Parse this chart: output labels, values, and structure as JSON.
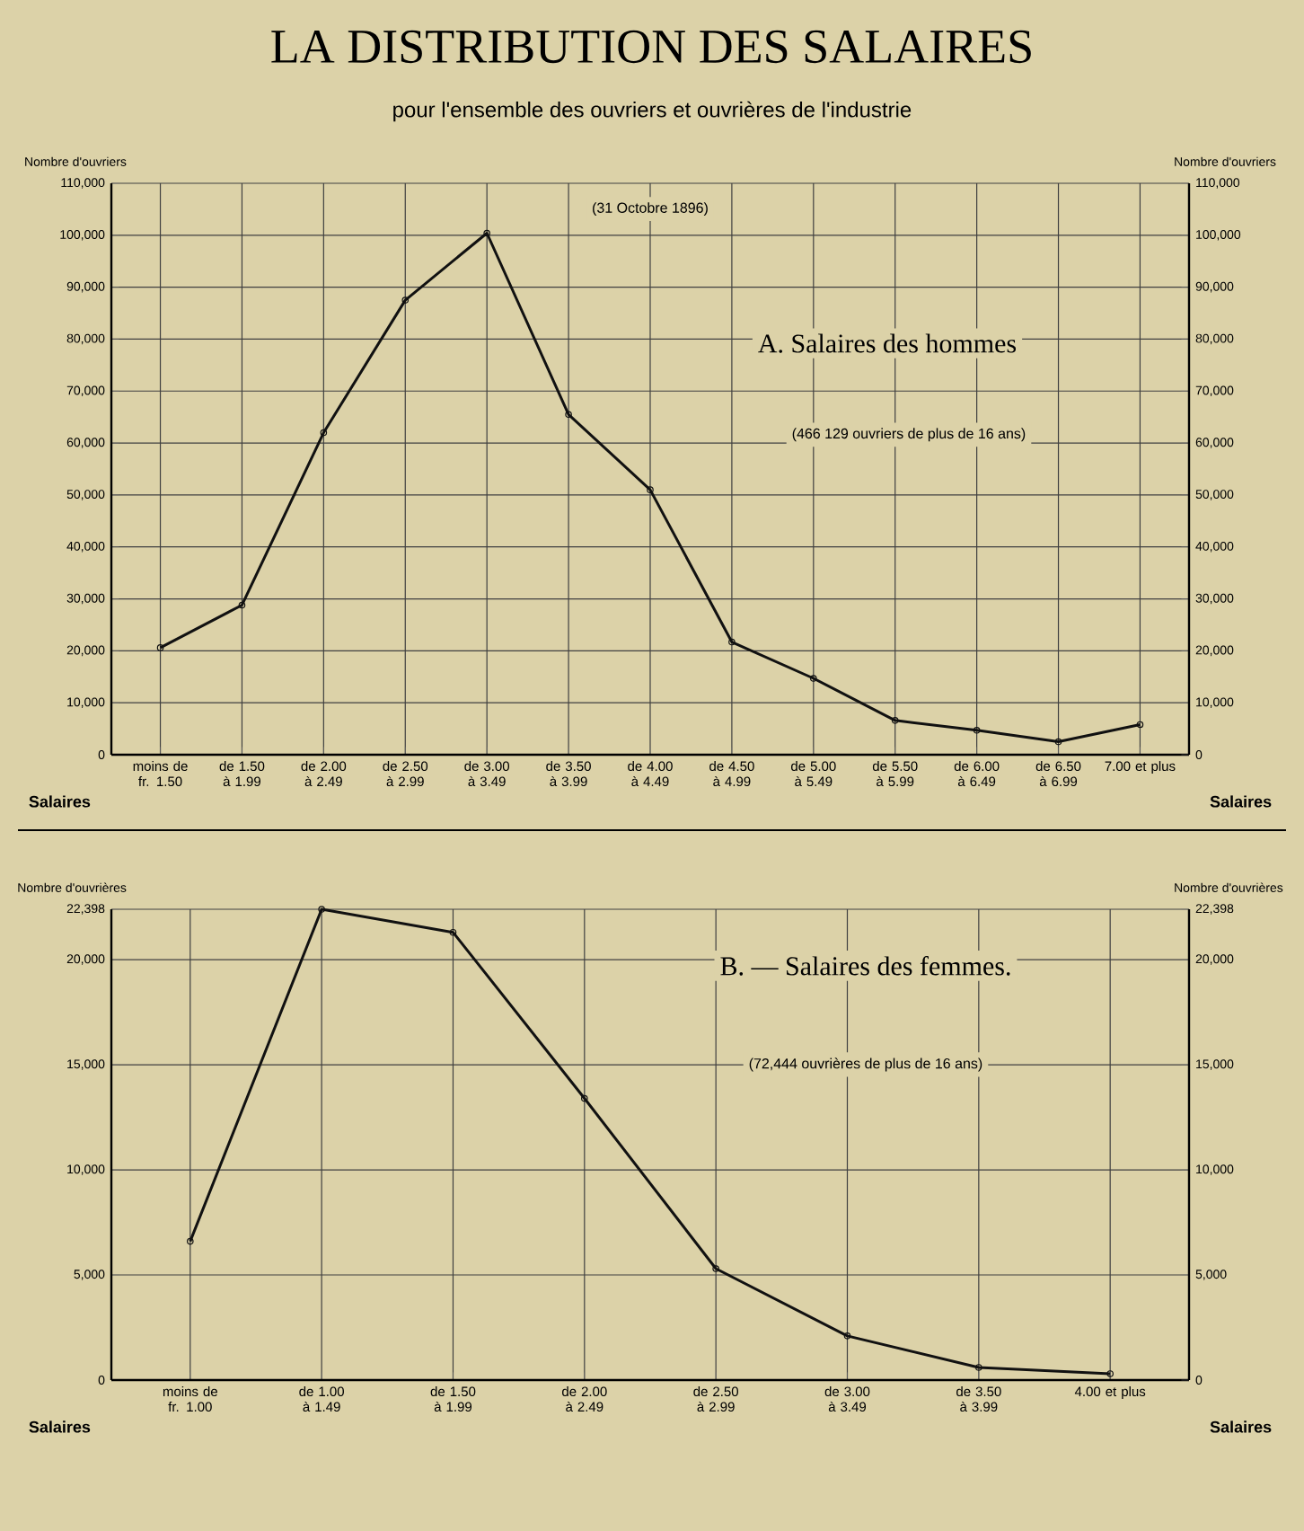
{
  "chart_data": [
    {
      "type": "line",
      "title": "LA DISTRIBUTION DES SALAIRES",
      "subtitle": "pour l'ensemble des ouvriers et ouvrières de l'industrie",
      "annotations": [
        "(31 Octobre 1896)",
        "A.    Salaires des hommes",
        "(466 129 ouvriers de plus de 16 ans)"
      ],
      "xlabel": "Salaires",
      "ylabel": "Nombre d'ouvriers",
      "y2label": "Nombre d'ouvriers",
      "categories": [
        "moins de fr. 1.50",
        "de 1.50 à 1.99",
        "de 2.00 à 2.49",
        "de 2.50 à 2.99",
        "de 3.00 à 3.49",
        "de 3.50 à 3.99",
        "de 4.00 à 4.49",
        "de 4.50 à 4.99",
        "de 5.00 à 5.49",
        "de 5.50 à 5.99",
        "de 6.00 à 6.49",
        "de 6.50 à 6.99",
        "7.00 et plus"
      ],
      "values": [
        20600,
        28800,
        62000,
        87500,
        100400,
        65500,
        51000,
        21700,
        14700,
        6600,
        4700,
        2500,
        5800
      ],
      "color": "#111111",
      "ylim": [
        0,
        110000
      ],
      "yticks": [
        0,
        {
          "value": 10000,
          "label": "10,000"
        },
        {
          "value": 20000,
          "label": "20,000"
        },
        {
          "value": 30000,
          "label": "30,000"
        },
        {
          "value": 40000,
          "label": "40,000"
        },
        {
          "value": 50000,
          "label": "50,000"
        },
        {
          "value": 60000,
          "label": "60,000"
        },
        {
          "value": 70000,
          "label": "70,000"
        },
        {
          "value": 80000,
          "label": "80,000"
        },
        {
          "value": 90000,
          "label": "90,000"
        },
        {
          "value": 100000,
          "label": "100,000"
        },
        {
          "value": 110000,
          "label": "110,000"
        }
      ],
      "y2lim": [
        0,
        110000
      ],
      "y2ticks": [
        0,
        {
          "value": 10000,
          "label": "10,000"
        },
        {
          "value": 20000,
          "label": "20,000"
        },
        {
          "value": 30000,
          "label": "30,000"
        },
        {
          "value": 40000,
          "label": "40,000"
        },
        {
          "value": 50000,
          "label": "50,000"
        },
        {
          "value": 60000,
          "label": "60,000"
        },
        {
          "value": 70000,
          "label": "70,000"
        },
        {
          "value": 80000,
          "label": "80,000"
        },
        {
          "value": 90000,
          "label": "90,000"
        },
        {
          "value": 100000,
          "label": "100,000"
        },
        {
          "value": 110000,
          "label": "110,000"
        }
      ],
      "grid": true,
      "marker": "circle",
      "line_style": "solid"
    },
    {
      "type": "line",
      "annotations": [
        "B.  —  Salaires des femmes.",
        "(72,444 ouvrières de plus de 16 ans)"
      ],
      "xlabel": "Salaires",
      "ylabel": "Nombre d'ouvrières",
      "y2label": "Nombre d'ouvrières",
      "categories": [
        "moins de fr. 1.00",
        "de 1.00 à 1.49",
        "de 1.50 à 1.99",
        "de 2.00 à 2.49",
        "de 2.50 à 2.99",
        "de 3.00 à 3.49",
        "de 3.50 à 3.99",
        "4.00 et plus"
      ],
      "values": [
        6600,
        22398,
        21300,
        13400,
        5300,
        2100,
        600,
        300
      ],
      "color": "#111111",
      "ylim": [
        0,
        22398
      ],
      "yticks": [
        0,
        {
          "value": 5000,
          "label": "5,000"
        },
        {
          "value": 10000,
          "label": "10,000"
        },
        {
          "value": 15000,
          "label": "15,000"
        },
        {
          "value": 20000,
          "label": "20,000"
        },
        {
          "value": 22398,
          "label": "22,398"
        }
      ],
      "y2lim": [
        0,
        22398
      ],
      "y2ticks": [
        0,
        {
          "value": 5000,
          "label": "5,000"
        },
        {
          "value": 10000,
          "label": "10,000"
        },
        {
          "value": 15000,
          "label": "15,000"
        },
        {
          "value": 20000,
          "label": "20,000"
        },
        {
          "value": 22398,
          "label": "22,398"
        }
      ],
      "grid": true,
      "marker": "circle",
      "line_style": "solid"
    }
  ]
}
